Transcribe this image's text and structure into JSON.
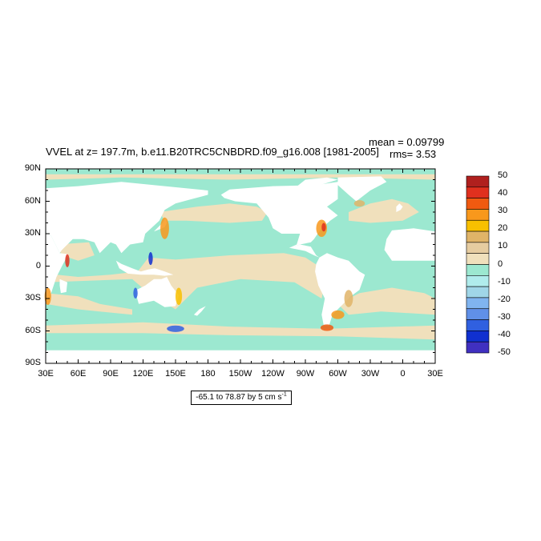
{
  "header": {
    "title": "VVEL at z= 197.7m, b.e11.B20TRC5CNBDRD.f09_g16.008 [1981-2005]",
    "mean": "mean = 0.09799",
    "rms": "rms= 3.53"
  },
  "map": {
    "projection": "cylindrical equidistant",
    "lon_range": [
      30,
      390
    ],
    "lat_range": [
      -90,
      90
    ],
    "lat_labels": [
      "90N",
      "60N",
      "30N",
      "0",
      "30S",
      "60S",
      "90S"
    ],
    "lon_labels": [
      "30E",
      "60E",
      "90E",
      "120E",
      "150E",
      "180",
      "150W",
      "120W",
      "90W",
      "60W",
      "30W",
      "0",
      "30E"
    ],
    "ocean_zero_color": "#9ce8d0",
    "ocean_pos_color": "#f0e0bc",
    "land_color": "#ffffff"
  },
  "colorbar": {
    "labels": [
      "50",
      "40",
      "30",
      "20",
      "10",
      "0",
      "-10",
      "-20",
      "-30",
      "-40",
      "-50"
    ],
    "colors": [
      "#b0201e",
      "#e0301e",
      "#f05a10",
      "#f8981c",
      "#f8c000",
      "#e0b468",
      "#e6cca0",
      "#f0e0bc",
      "#9ce8d0",
      "#b0ecec",
      "#a0d6e8",
      "#80b4f0",
      "#6090e8",
      "#3060e0",
      "#1030d0",
      "#4030c0"
    ]
  },
  "footer": {
    "range_label": "-65.1 to 78.87 by 5 cm s",
    "range_unit_exp": "-1"
  }
}
